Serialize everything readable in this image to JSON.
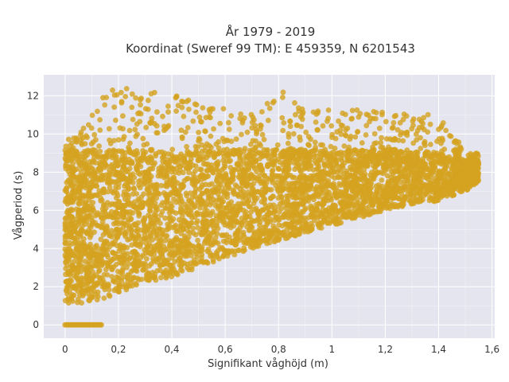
{
  "chart_data": {
    "type": "scatter",
    "title_line1": "År 1979 - 2019",
    "title_line2": "Koordinat (Sweref 99 TM): E 459359, N 6201543",
    "xlabel": "Signifikant våghöjd (m)",
    "ylabel": "Vågperiod (s)",
    "xlim": [
      -0.08,
      1.61
    ],
    "ylim": [
      -0.7,
      13.1
    ],
    "x_ticks": [
      0,
      0.2,
      0.4,
      0.6,
      0.8,
      1,
      1.2,
      1.4,
      1.6
    ],
    "x_tick_labels": [
      "0",
      "0,2",
      "0,4",
      "0,6",
      "0,8",
      "1",
      "1,2",
      "1,4",
      "1,6"
    ],
    "y_ticks": [
      0,
      2,
      4,
      6,
      8,
      10,
      12
    ],
    "y_tick_labels": [
      "0",
      "2",
      "4",
      "6",
      "8",
      "10",
      "12"
    ],
    "grid": true,
    "colors": {
      "background": "#e5e5ef",
      "marker": "#d4a31f"
    },
    "envelope": [
      {
        "x": 0.0,
        "y_min": 1.1,
        "y_max": 9.7
      },
      {
        "x": 0.05,
        "y_min": 1.1,
        "y_max": 10.0
      },
      {
        "x": 0.1,
        "y_min": 1.2,
        "y_max": 11.0
      },
      {
        "x": 0.15,
        "y_min": 1.4,
        "y_max": 12.2
      },
      {
        "x": 0.2,
        "y_min": 1.7,
        "y_max": 12.6
      },
      {
        "x": 0.25,
        "y_min": 1.9,
        "y_max": 12.4
      },
      {
        "x": 0.3,
        "y_min": 2.1,
        "y_max": 12.0
      },
      {
        "x": 0.4,
        "y_min": 2.5,
        "y_max": 12.6
      },
      {
        "x": 0.5,
        "y_min": 3.0,
        "y_max": 11.5
      },
      {
        "x": 0.6,
        "y_min": 3.5,
        "y_max": 11.4
      },
      {
        "x": 0.7,
        "y_min": 4.0,
        "y_max": 11.2
      },
      {
        "x": 0.8,
        "y_min": 4.4,
        "y_max": 12.4
      },
      {
        "x": 0.9,
        "y_min": 4.8,
        "y_max": 11.2
      },
      {
        "x": 1.0,
        "y_min": 5.2,
        "y_max": 11.3
      },
      {
        "x": 1.1,
        "y_min": 5.6,
        "y_max": 11.4
      },
      {
        "x": 1.2,
        "y_min": 6.0,
        "y_max": 11.2
      },
      {
        "x": 1.3,
        "y_min": 6.3,
        "y_max": 11.0
      },
      {
        "x": 1.4,
        "y_min": 6.5,
        "y_max": 11.4
      },
      {
        "x": 1.5,
        "y_min": 7.0,
        "y_max": 9.0
      },
      {
        "x": 1.55,
        "y_min": 7.5,
        "y_max": 8.8
      }
    ],
    "zero_period_band": {
      "x_min": 0.0,
      "x_max": 0.14,
      "y": 0
    }
  }
}
